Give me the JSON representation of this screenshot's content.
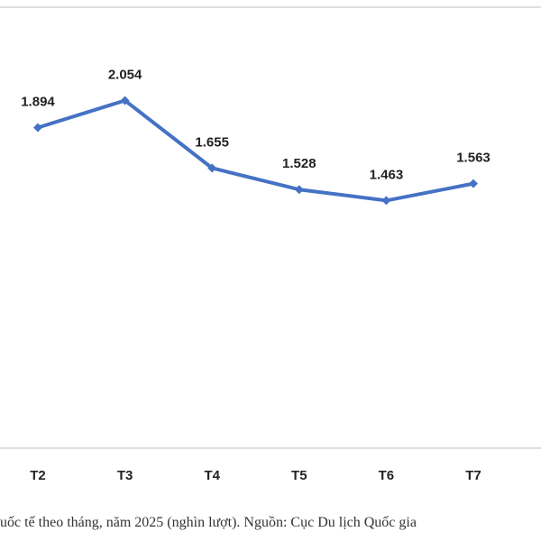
{
  "chart_data": {
    "type": "line",
    "categories": [
      "T2",
      "T3",
      "T4",
      "T5",
      "T6",
      "T7"
    ],
    "series": [
      {
        "color": "#4472c4",
        "values": [
          1894,
          2054,
          1655,
          1528,
          1463,
          1563
        ],
        "value_labels": [
          "1.894",
          "2.054",
          "1.655",
          "1.528",
          "1.463",
          "1.563"
        ]
      }
    ],
    "ylim": [
      0,
      2600
    ],
    "caption": "uốc tế theo tháng, năm 2025 (nghìn lượt). Nguồn: Cục Du lịch Quốc gia"
  }
}
